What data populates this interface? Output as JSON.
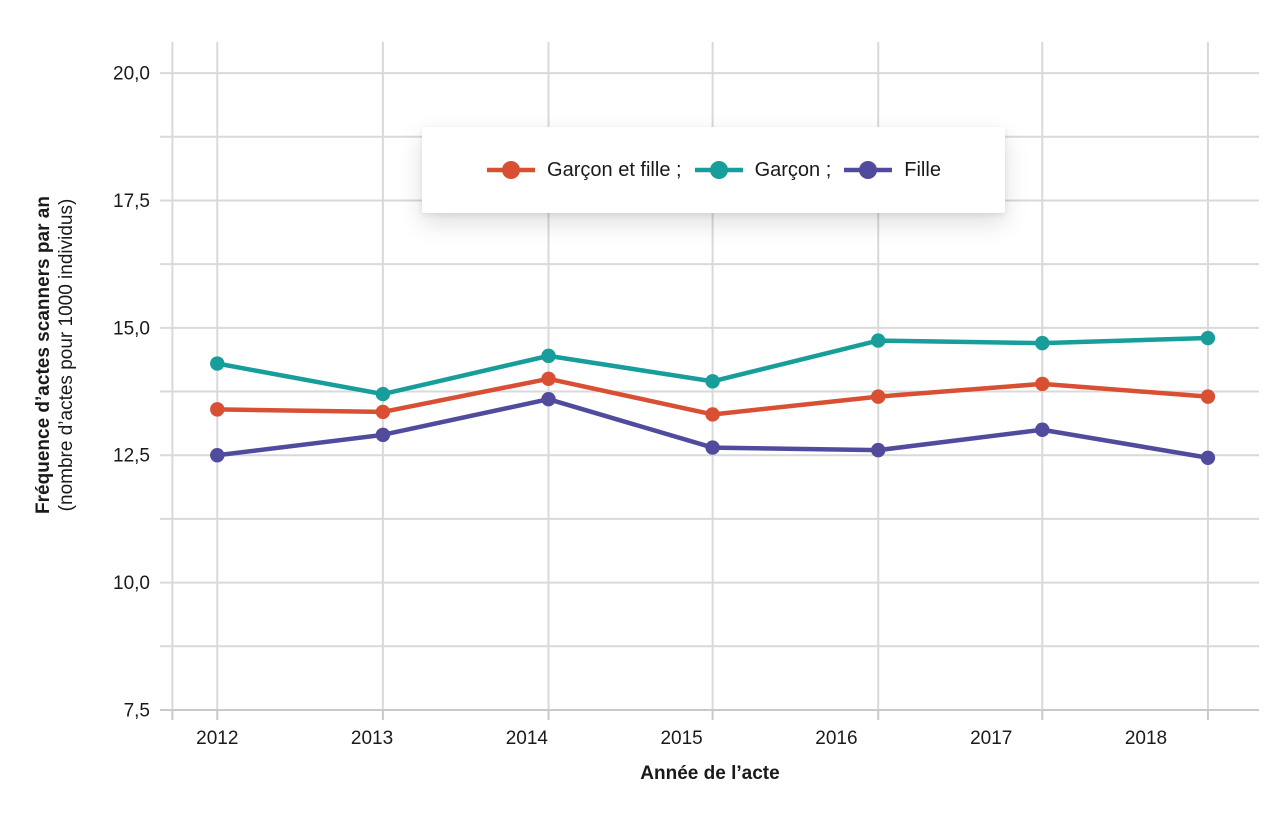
{
  "chart_data": {
    "type": "line",
    "legend_position": "top-center",
    "grid": true,
    "colors": {
      "grid": "#d9d9d9",
      "axis": "#c9c9c9",
      "text": "#1a1a1a",
      "background": "#ffffff"
    },
    "x_axis": {
      "label": "Année de l’acte",
      "range": [
        2011.63,
        2018.73
      ],
      "grid_positions": [
        2011.71,
        2012.0,
        2013.07,
        2014.14,
        2015.2,
        2016.27,
        2017.33,
        2018.4
      ],
      "ticks": [
        {
          "v": 2012,
          "label": "2012"
        },
        {
          "v": 2013,
          "label": "2013"
        },
        {
          "v": 2014,
          "label": "2014"
        },
        {
          "v": 2015,
          "label": "2015"
        },
        {
          "v": 2016,
          "label": "2016"
        },
        {
          "v": 2017,
          "label": "2017"
        },
        {
          "v": 2018,
          "label": "2018"
        }
      ]
    },
    "y_axis": {
      "label_line1": "Fréquence d’actes scanners par an",
      "label_line2": "(nombre d’actes pour 1000 individus)",
      "range": [
        7.5,
        20.61
      ],
      "ticks": [
        {
          "v": 7.5,
          "label": "7,5"
        },
        {
          "v": 8.75,
          "label": ""
        },
        {
          "v": 10.0,
          "label": "10,0"
        },
        {
          "v": 11.25,
          "label": ""
        },
        {
          "v": 12.5,
          "label": "12,5"
        },
        {
          "v": 13.75,
          "label": ""
        },
        {
          "v": 15.0,
          "label": "15,0"
        },
        {
          "v": 16.25,
          "label": ""
        },
        {
          "v": 17.5,
          "label": "17,5"
        },
        {
          "v": 18.75,
          "label": ""
        },
        {
          "v": 20.0,
          "label": "20,0"
        }
      ]
    },
    "x": [
      2012.0,
      2013.07,
      2014.14,
      2015.2,
      2016.27,
      2017.33,
      2018.4
    ],
    "x_years": [
      "2012",
      "2013",
      "2014",
      "2015",
      "2016",
      "2017",
      "2018"
    ],
    "series": [
      {
        "name": "garcon-et-fille",
        "legend_label": "Garçon et fille ;",
        "color": "#d94f33",
        "values": [
          13.4,
          13.35,
          14.0,
          13.3,
          13.65,
          13.9,
          13.65
        ]
      },
      {
        "name": "garcon",
        "legend_label": "Garçon ;",
        "color": "#189e9a",
        "values": [
          14.3,
          13.7,
          14.45,
          13.95,
          14.75,
          14.7,
          14.8
        ]
      },
      {
        "name": "fille",
        "legend_label": "Fille",
        "color": "#514b9e",
        "values": [
          12.5,
          12.9,
          13.6,
          12.65,
          12.6,
          13.0,
          12.45
        ]
      }
    ]
  }
}
